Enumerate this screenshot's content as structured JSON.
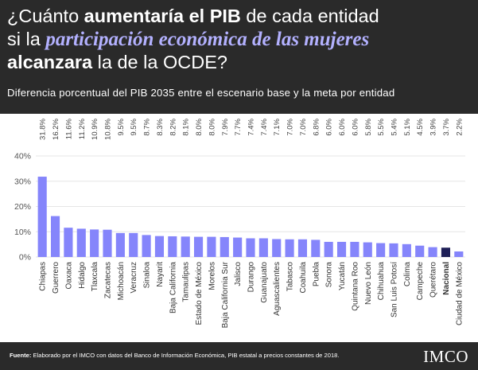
{
  "header": {
    "title_part1": "¿Cuánto ",
    "title_bold1": "aumentaría el PIB",
    "title_part2": " de cada entidad",
    "title_part3": "si la ",
    "title_accent": "participación económica de las mujeres",
    "title_bold2": "alcanzara",
    "title_part4": " la de la OCDE?",
    "subtitle": "Diferencia porcentual del PIB 2035 entre el escenario base y la meta por entidad"
  },
  "footer": {
    "source_label": "Fuente:",
    "source_text": " Elaborado por el IMCO con datos del Banco de Información Económica, PIB estatal a precios constantes de 2018.",
    "logo": "IMCO"
  },
  "colors": {
    "background_dark": "#2a2a2a",
    "bar": "#8585fb",
    "bar_highlight": "#1e1f57",
    "accent_text": "#b3b1ff",
    "axis_text": "#555555",
    "grid": "#e6e6e6"
  },
  "chart_data": {
    "type": "bar",
    "title": "",
    "xlabel": "",
    "ylabel": "",
    "ylim": [
      0,
      40
    ],
    "yticks": [
      0,
      10,
      20,
      30,
      40
    ],
    "ytick_labels": [
      "0%",
      "10%",
      "20%",
      "30%",
      "40%"
    ],
    "grid": true,
    "highlight_category": "Nacional",
    "categories": [
      "Chiapas",
      "Guerrero",
      "Oaxaca",
      "Hidalgo",
      "Tlaxcala",
      "Zacatecas",
      "Michoacán",
      "Veracruz",
      "Sinaloa",
      "Nayarit",
      "Baja California",
      "Tamaulipas",
      "Estado de México",
      "Morelos",
      "Baja California Sur",
      "Jalisco",
      "Durango",
      "Guanajuato",
      "Aguascalientes",
      "Tabasco",
      "Coahuila",
      "Puebla",
      "Sonora",
      "Yucatán",
      "Quintana Roo",
      "Nuevo León",
      "Chihuahua",
      "San Luis Potosí",
      "Colima",
      "Campeche",
      "Querétaro",
      "Nacional",
      "Ciudad de México"
    ],
    "values": [
      31.8,
      16.2,
      11.6,
      11.2,
      10.9,
      10.8,
      9.5,
      9.5,
      8.7,
      8.3,
      8.2,
      8.1,
      8.0,
      8.0,
      7.9,
      7.7,
      7.4,
      7.4,
      7.1,
      7.0,
      7.0,
      6.8,
      6.0,
      6.0,
      6.0,
      5.8,
      5.5,
      5.4,
      5.1,
      4.5,
      3.9,
      3.7,
      2.2
    ],
    "value_labels": [
      "31.8%",
      "16.2%",
      "11.6%",
      "11.2%",
      "10.9%",
      "10.8%",
      "9.5%",
      "9.5%",
      "8.7%",
      "8.3%",
      "8.2%",
      "8.1%",
      "8.0%",
      "8.0%",
      "7.9%",
      "7.7%",
      "7.4%",
      "7.4%",
      "7.1%",
      "7.0%",
      "7.0%",
      "6.8%",
      "6.0%",
      "6.0%",
      "6.0%",
      "5.8%",
      "5.5%",
      "5.4%",
      "5.1%",
      "4.5%",
      "3.9%",
      "3.7%",
      "2.2%"
    ]
  }
}
